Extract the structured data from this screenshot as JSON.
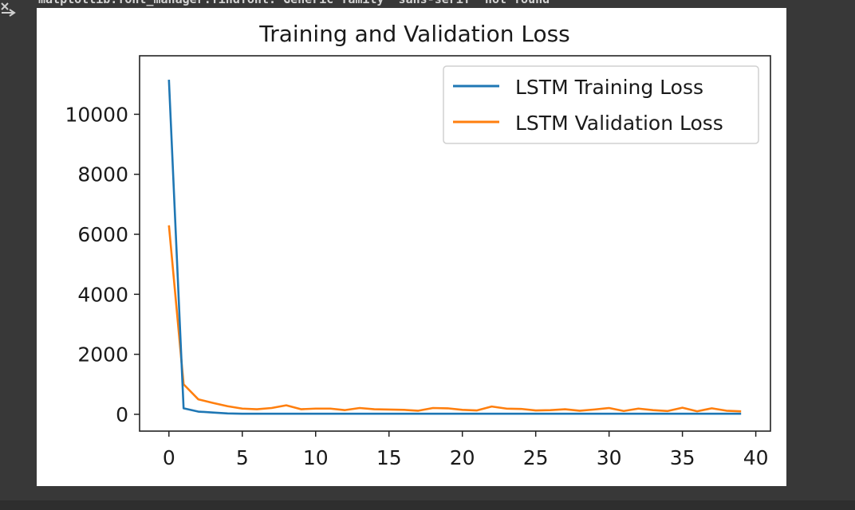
{
  "cell_output": {
    "warning_text": "matplotlib.font_manager:findfont: Generic family 'sans-serif' not found"
  },
  "colors": {
    "training": "#1f77b4",
    "validation": "#ff7f0e"
  },
  "chart_data": {
    "type": "line",
    "title": "Training and Validation Loss",
    "xlabel": "",
    "ylabel": "",
    "xlim": [
      -2,
      41
    ],
    "ylim": [
      -560,
      11950
    ],
    "xticks": [
      0,
      5,
      10,
      15,
      20,
      25,
      30,
      35,
      40
    ],
    "yticks": [
      0,
      2000,
      4000,
      6000,
      8000,
      10000
    ],
    "xtick_labels": [
      "0",
      "5",
      "10",
      "15",
      "20",
      "25",
      "30",
      "35",
      "40"
    ],
    "ytick_labels": [
      "0",
      "2000",
      "4000",
      "6000",
      "8000",
      "10000"
    ],
    "legend_position": "upper right",
    "grid": false,
    "series": [
      {
        "name": "LSTM Training Loss",
        "color": "#1f77b4",
        "x": [
          0,
          1,
          2,
          3,
          4,
          5,
          6,
          7,
          8,
          9,
          10,
          11,
          12,
          13,
          14,
          15,
          16,
          17,
          18,
          19,
          20,
          21,
          22,
          23,
          24,
          25,
          26,
          27,
          28,
          29,
          30,
          31,
          32,
          33,
          34,
          35,
          36,
          37,
          38,
          39
        ],
        "values": [
          11150,
          200,
          90,
          60,
          30,
          20,
          20,
          20,
          20,
          20,
          20,
          20,
          20,
          20,
          20,
          20,
          20,
          20,
          20,
          20,
          20,
          20,
          20,
          20,
          20,
          20,
          20,
          20,
          20,
          20,
          20,
          20,
          20,
          20,
          20,
          20,
          20,
          20,
          20,
          20
        ]
      },
      {
        "name": "LSTM Validation Loss",
        "color": "#ff7f0e",
        "x": [
          0,
          1,
          2,
          3,
          4,
          5,
          6,
          7,
          8,
          9,
          10,
          11,
          12,
          13,
          14,
          15,
          16,
          17,
          18,
          19,
          20,
          21,
          22,
          23,
          24,
          25,
          26,
          27,
          28,
          29,
          30,
          31,
          32,
          33,
          34,
          35,
          36,
          37,
          38,
          39
        ],
        "values": [
          6300,
          1000,
          500,
          380,
          270,
          190,
          170,
          210,
          300,
          170,
          190,
          190,
          140,
          210,
          170,
          160,
          150,
          120,
          210,
          200,
          150,
          130,
          260,
          190,
          180,
          130,
          140,
          170,
          120,
          160,
          210,
          110,
          190,
          140,
          110,
          220,
          100,
          200,
          120,
          100
        ]
      }
    ]
  }
}
